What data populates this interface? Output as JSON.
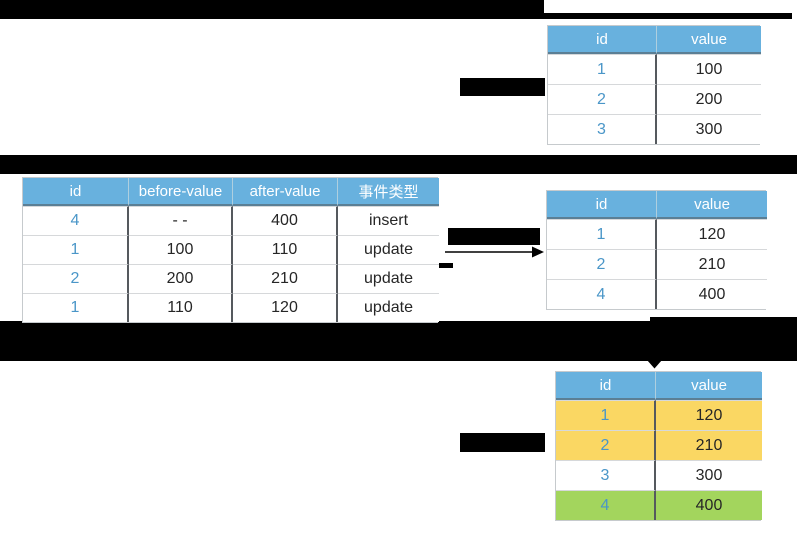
{
  "colors": {
    "table_header_bg": "#68b1de",
    "table_header_text": "#ffffff",
    "id_text_blue": "#4a96c8",
    "body_text": "#262626",
    "row_highlight_yellow": "#fad763",
    "row_highlight_green": "#a3d55d",
    "redaction_black": "#000000"
  },
  "tables": {
    "initial": {
      "headers": [
        "id",
        "value"
      ],
      "rows": [
        [
          "1",
          "100"
        ],
        [
          "2",
          "200"
        ],
        [
          "3",
          "300"
        ]
      ]
    },
    "changelog": {
      "headers": [
        "id",
        "before-value",
        "after-value",
        "事件类型"
      ],
      "rows": [
        [
          "4",
          "- -",
          "400",
          "insert"
        ],
        [
          "1",
          "100",
          "110",
          "update"
        ],
        [
          "2",
          "200",
          "210",
          "update"
        ],
        [
          "1",
          "110",
          "120",
          "update"
        ]
      ]
    },
    "after_replay": {
      "headers": [
        "id",
        "value"
      ],
      "rows": [
        [
          "1",
          "120"
        ],
        [
          "2",
          "210"
        ],
        [
          "4",
          "400"
        ]
      ]
    },
    "final": {
      "headers": [
        "id",
        "value"
      ],
      "rows": [
        [
          "1",
          "120"
        ],
        [
          "2",
          "210"
        ],
        [
          "3",
          "300"
        ],
        [
          "4",
          "400"
        ]
      ],
      "row_colors": [
        "#fad763",
        "#fad763",
        "#ffffff",
        "#a3d55d"
      ]
    }
  }
}
